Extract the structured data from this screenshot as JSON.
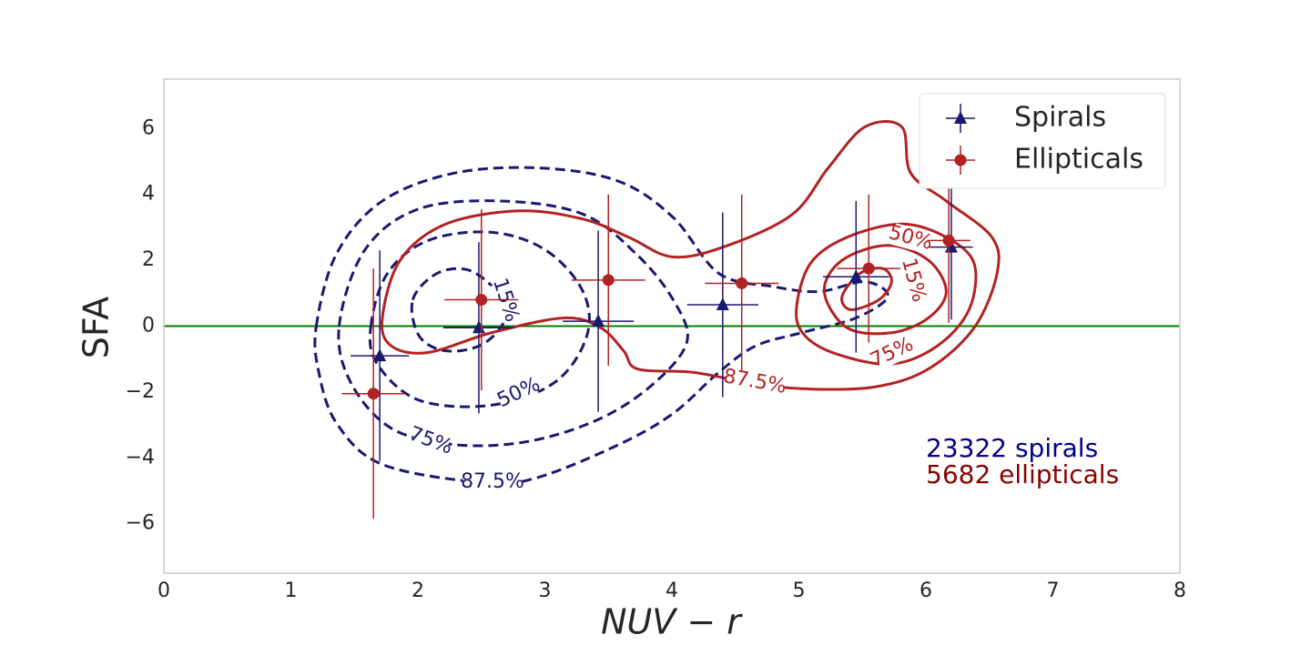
{
  "chart_data": {
    "type": "errorbar-contour",
    "xlabel": "NUV − r",
    "ylabel": "SFA",
    "xlim": [
      0,
      8
    ],
    "ylim": [
      -7.5,
      7.5
    ],
    "xticks": [
      0,
      1,
      2,
      3,
      4,
      5,
      6,
      7,
      8
    ],
    "yticks": [
      {
        "value": -6,
        "label": "−6"
      },
      {
        "value": -4,
        "label": "−4"
      },
      {
        "value": -2,
        "label": "−2"
      },
      0,
      2,
      4,
      6
    ],
    "grid": false,
    "legend": "upper right",
    "hline": {
      "y": 0,
      "color": "#008000"
    },
    "series": [
      {
        "name": "Spirals",
        "color": "#191970",
        "marker": "triangle",
        "x": [
          1.7,
          2.48,
          3.42,
          4.4,
          5.45,
          6.2
        ],
        "y": [
          -0.9,
          -0.05,
          0.15,
          0.65,
          1.5,
          2.4
        ],
        "xerr": [
          0.23,
          0.28,
          0.28,
          0.28,
          0.26,
          0.17
        ],
        "yerr": [
          3.2,
          2.6,
          2.75,
          2.8,
          2.3,
          2.2
        ]
      },
      {
        "name": "Ellipticals",
        "color": "#b22222",
        "marker": "circle",
        "x": [
          1.65,
          2.5,
          3.5,
          4.55,
          5.55,
          6.18
        ],
        "y": [
          -2.05,
          0.8,
          1.4,
          1.3,
          1.75,
          2.6
        ],
        "xerr": [
          0.25,
          0.29,
          0.29,
          0.29,
          0.25,
          0.17
        ],
        "yerr": [
          3.8,
          2.75,
          2.6,
          2.7,
          2.25,
          2.5
        ]
      }
    ],
    "contours": [
      {
        "label": "87.5%",
        "color": "#191970",
        "dashed": true,
        "x": [
          1.2,
          1.36,
          1.72,
          2.29,
          2.97,
          3.58,
          4.01,
          4.37,
          4.8,
          5.16,
          5.52,
          5.7,
          5.45,
          5.02,
          4.66,
          4.37,
          4.01,
          3.58,
          2.94,
          2.51,
          1.72,
          1.36,
          1.22
        ],
        "y": [
          0,
          2.2,
          3.8,
          4.65,
          4.8,
          4.4,
          3.3,
          1.6,
          1.2,
          1.05,
          1.35,
          0.9,
          0.25,
          -0.2,
          -0.6,
          -1.4,
          -2.65,
          -3.6,
          -4.6,
          -4.75,
          -4.2,
          -2.95,
          -1.4
        ]
      },
      {
        "label": "75%",
        "color": "#191970",
        "dashed": true,
        "x": [
          1.38,
          1.58,
          2.0,
          2.65,
          3.3,
          3.73,
          4.01,
          4.12,
          3.87,
          3.44,
          2.87,
          2.29,
          1.79,
          1.47
        ],
        "y": [
          0,
          2.3,
          3.55,
          3.8,
          3.4,
          2.15,
          0.8,
          -0.45,
          -1.7,
          -2.8,
          -3.5,
          -3.6,
          -3.1,
          -1.7
        ]
      },
      {
        "label": "50%",
        "color": "#191970",
        "dashed": true,
        "x": [
          1.63,
          1.76,
          2.08,
          2.58,
          3.01,
          3.3,
          3.33,
          3.08,
          2.58,
          2.01,
          1.68
        ],
        "y": [
          0,
          1.6,
          2.6,
          2.85,
          2.3,
          1.05,
          -0.3,
          -1.7,
          -2.4,
          -2.25,
          -1.15
        ]
      },
      {
        "label": "15%",
        "color": "#191970",
        "dashed": true,
        "x": [
          1.96,
          2.15,
          2.4,
          2.62,
          2.69,
          2.51,
          2.22,
          2.01
        ],
        "y": [
          0.8,
          1.6,
          1.7,
          1.05,
          0.25,
          -0.55,
          -0.75,
          -0.3
        ]
      },
      {
        "label": "87.5%",
        "color": "#b22222",
        "dashed": false,
        "x": [
          1.72,
          1.86,
          2.22,
          2.8,
          3.3,
          3.66,
          4.01,
          4.44,
          4.95,
          5.23,
          5.52,
          5.81,
          5.88,
          6.16,
          6.52,
          6.56,
          6.38,
          6.02,
          5.59,
          5.02,
          4.59,
          4.16,
          3.73,
          3.62,
          3.44,
          3.15,
          2.58,
          2.08,
          1.79
        ],
        "y": [
          0.24,
          2.0,
          3.1,
          3.5,
          3.25,
          2.7,
          2.1,
          2.45,
          3.4,
          4.8,
          6.05,
          6.05,
          4.65,
          3.8,
          2.7,
          1.6,
          -0.05,
          -1.3,
          -1.85,
          -1.9,
          -1.7,
          -1.4,
          -1.3,
          -0.75,
          -0.05,
          0.25,
          -0.2,
          -0.8,
          -0.6
        ]
      },
      {
        "label": "75%",
        "color": "#b22222",
        "dashed": false,
        "x": [
          4.98,
          5.09,
          5.38,
          5.81,
          6.16,
          6.38,
          6.34,
          6.09,
          5.73,
          5.3,
          5.05
        ],
        "y": [
          0.5,
          1.9,
          2.7,
          3.1,
          2.7,
          1.9,
          0.5,
          -0.6,
          -1.15,
          -0.85,
          -0.3
        ]
      },
      {
        "label": "50%",
        "color": "#b22222",
        "dashed": false,
        "x": [
          5.2,
          5.34,
          5.7,
          6.02,
          6.16,
          6.02,
          5.73,
          5.38
        ],
        "y": [
          1.05,
          2.0,
          2.45,
          2.0,
          1.05,
          0.25,
          -0.2,
          -0.05
        ]
      },
      {
        "label": "15%",
        "color": "#b22222",
        "dashed": false,
        "x": [
          5.34,
          5.48,
          5.66,
          5.73,
          5.63,
          5.41
        ],
        "y": [
          0.9,
          1.6,
          1.75,
          1.35,
          0.8,
          0.5
        ]
      }
    ],
    "annotations": [
      {
        "text": "23322 spirals",
        "color": "#00008b"
      },
      {
        "text": "5682 ellipticals",
        "color": "#8b0000"
      }
    ]
  }
}
